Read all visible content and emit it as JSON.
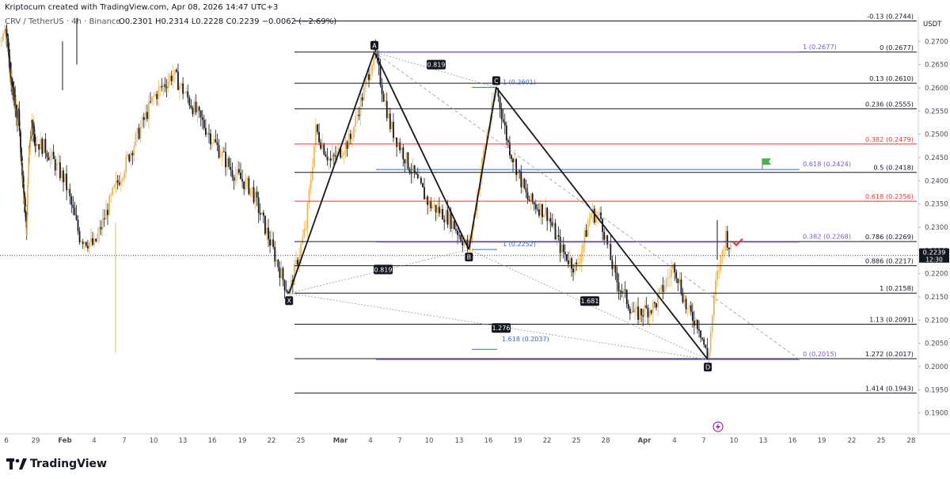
{
  "header": {
    "created_by": "Kriptocum created with TradingView.com, Apr 08, 2026 14:47 UTC+3",
    "symbol": "CRV / TetherUS · 4h · Binance",
    "ohlc": "O0.2301  H0.2314  L0.2228  C0.2239  −0.0062 (−2.69%)"
  },
  "price_axis": {
    "currency": "USDT",
    "current_price": "0.2239",
    "countdown": "12:30"
  },
  "footer": {
    "brand": "TradingView"
  },
  "colors": {
    "candle_up": "#e8b760",
    "candle_down": "#131722",
    "price_tag": "#131722",
    "fib_black": "#131722",
    "fib_red": "#e53935",
    "fib_blue": "#3a64d6",
    "fib_purple": "#7e57c2",
    "flag": "#4caf50",
    "check": "#e53935",
    "flash_icon": "#9c27b0"
  },
  "chart_data": {
    "type": "candlestick",
    "title": "CRV / TetherUS · 4h · Binance",
    "xlabel": "",
    "ylabel": "USDT",
    "ylim": [
      0.1855,
      0.2755
    ],
    "y_ticks": [
      "0.1900",
      "0.1950",
      "0.2000",
      "0.2050",
      "0.2100",
      "0.2150",
      "0.2200",
      "0.2250",
      "0.2300",
      "0.2350",
      "0.2400",
      "0.2450",
      "0.2500",
      "0.2550",
      "0.2600",
      "0.2650",
      "0.2700"
    ],
    "x_ticks": [
      "6",
      "29",
      "Feb",
      "4",
      "7",
      "10",
      "13",
      "16",
      "19",
      "22",
      "25",
      "Mar",
      "4",
      "7",
      "10",
      "13",
      "16",
      "19",
      "22",
      "25",
      "28",
      "Apr",
      "4",
      "7",
      "10",
      "13",
      "16",
      "19",
      "22",
      "25",
      "28"
    ],
    "pattern_points": [
      {
        "label": "X",
        "date": "Feb 23",
        "price": 0.2158
      },
      {
        "label": "A",
        "date": "Mar 4",
        "price": 0.2677
      },
      {
        "label": "B",
        "date": "Mar 14",
        "price": 0.2252
      },
      {
        "label": "C",
        "date": "Mar 17",
        "price": 0.2601
      },
      {
        "label": "D",
        "date": "Apr 7",
        "price": 0.2015
      }
    ],
    "ratio_labels": [
      "0.819",
      "0.819",
      "1.276",
      "1.681"
    ],
    "retracement_levels": [
      {
        "label": "-0.13 (0.2744)",
        "price": 0.2744
      },
      {
        "label": "0 (0.2677)",
        "price": 0.2677
      },
      {
        "label": "0.13 (0.2610)",
        "price": 0.261
      },
      {
        "label": "0.236 (0.2555)",
        "price": 0.2555
      },
      {
        "label": "0.382 (0.2479)",
        "price": 0.2479
      },
      {
        "label": "0.5 (0.2418)",
        "price": 0.2418
      },
      {
        "label": "0.618 (0.2356)",
        "price": 0.2356
      },
      {
        "label": "0.786 (0.2269)",
        "price": 0.2269
      },
      {
        "label": "0.886 (0.2217)",
        "price": 0.2217
      },
      {
        "label": "1 (0.2158)",
        "price": 0.2158
      },
      {
        "label": "1.13 (0.2091)",
        "price": 0.2091
      },
      {
        "label": "1.272 (0.2017)",
        "price": 0.2017
      },
      {
        "label": "1.414 (0.1943)",
        "price": 0.1943
      }
    ],
    "extension_levels": [
      {
        "label": "1 (0.2677)",
        "price": 0.2677
      },
      {
        "label": "0.618 (0.2424)",
        "price": 0.2424
      },
      {
        "label": "0.382 (0.2268)",
        "price": 0.2268
      },
      {
        "label": "0 (0.2015)",
        "price": 0.2015
      }
    ],
    "short_levels": [
      {
        "label": "1 (0.2601)",
        "price": 0.2601
      },
      {
        "label": "1 (0.2252)",
        "price": 0.2252
      },
      {
        "label": "1.618 (0.2037)",
        "price": 0.2037
      }
    ]
  }
}
